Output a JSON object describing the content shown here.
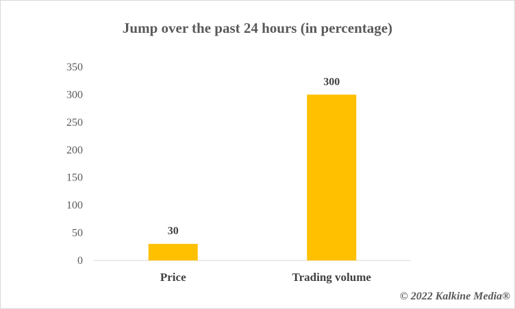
{
  "chart_data": {
    "type": "bar",
    "title": "Jump over the past 24 hours (in percentage)",
    "categories": [
      "Price",
      "Trading volume"
    ],
    "values": [
      30,
      300
    ],
    "data_labels": [
      "30",
      "300"
    ],
    "ylim": [
      0,
      350
    ],
    "yticks": [
      0,
      50,
      100,
      150,
      200,
      250,
      300,
      350
    ],
    "bar_color": "#FFC000",
    "grid": false,
    "xlabel": "",
    "ylabel": ""
  },
  "footer": {
    "copyright": "© 2022 Kalkine Media®"
  }
}
